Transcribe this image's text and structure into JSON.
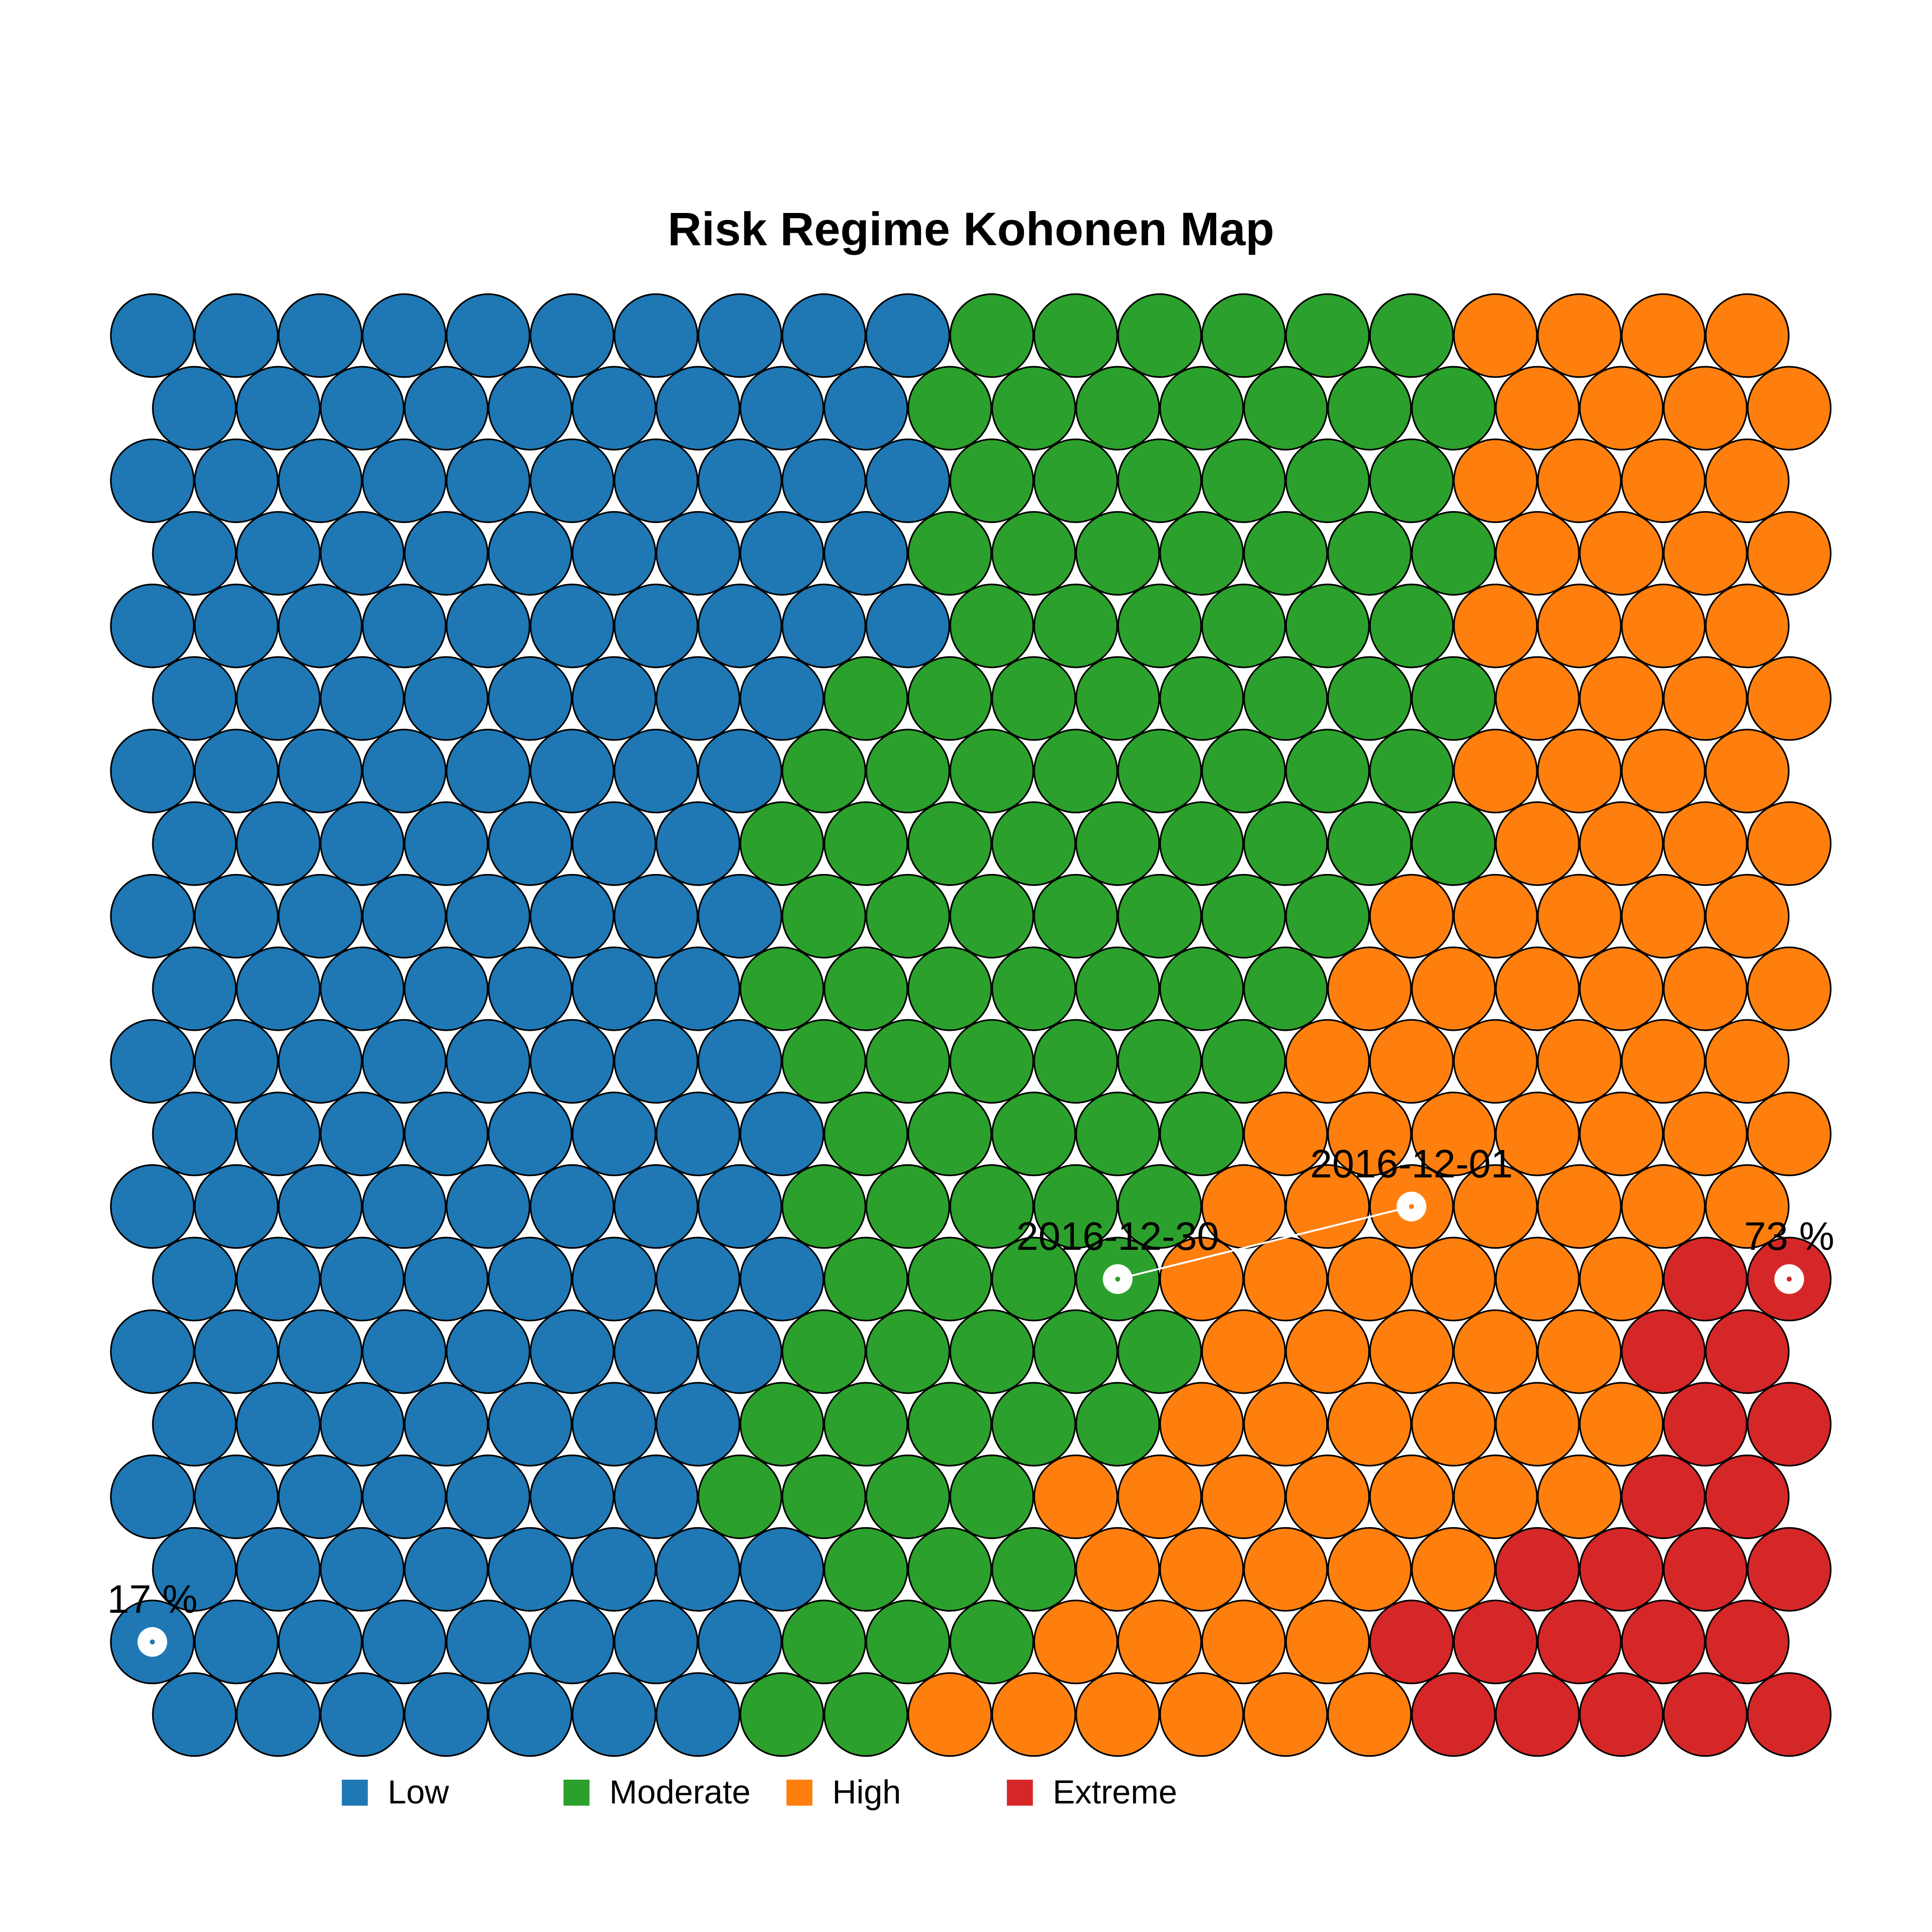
{
  "chart_data": {
    "type": "kohonen",
    "title": "Risk Regime Kohonen Map",
    "series": [
      {
        "name": "Low",
        "color": "#1f77b4"
      },
      {
        "name": "Moderate",
        "color": "#2ca02c"
      },
      {
        "name": "High",
        "color": "#ff7f0e"
      },
      {
        "name": "Extreme",
        "color": "#d62728"
      }
    ],
    "grid": [
      [
        0,
        0,
        0,
        0,
        0,
        0,
        0,
        0,
        0,
        0,
        1,
        1,
        1,
        1,
        1,
        1,
        2,
        2,
        2,
        2
      ],
      [
        0,
        0,
        0,
        0,
        0,
        0,
        0,
        0,
        0,
        1,
        1,
        1,
        1,
        1,
        1,
        1,
        2,
        2,
        2,
        2
      ],
      [
        0,
        0,
        0,
        0,
        0,
        0,
        0,
        0,
        0,
        0,
        1,
        1,
        1,
        1,
        1,
        1,
        2,
        2,
        2,
        2
      ],
      [
        0,
        0,
        0,
        0,
        0,
        0,
        0,
        0,
        0,
        1,
        1,
        1,
        1,
        1,
        1,
        1,
        2,
        2,
        2,
        2
      ],
      [
        0,
        0,
        0,
        0,
        0,
        0,
        0,
        0,
        0,
        0,
        1,
        1,
        1,
        1,
        1,
        1,
        2,
        2,
        2,
        2
      ],
      [
        0,
        0,
        0,
        0,
        0,
        0,
        0,
        0,
        1,
        1,
        1,
        1,
        1,
        1,
        1,
        1,
        2,
        2,
        2,
        2
      ],
      [
        0,
        0,
        0,
        0,
        0,
        0,
        0,
        0,
        1,
        1,
        1,
        1,
        1,
        1,
        1,
        1,
        2,
        2,
        2,
        2
      ],
      [
        0,
        0,
        0,
        0,
        0,
        0,
        0,
        1,
        1,
        1,
        1,
        1,
        1,
        1,
        1,
        1,
        2,
        2,
        2,
        2
      ],
      [
        0,
        0,
        0,
        0,
        0,
        0,
        0,
        0,
        1,
        1,
        1,
        1,
        1,
        1,
        1,
        2,
        2,
        2,
        2,
        2
      ],
      [
        0,
        0,
        0,
        0,
        0,
        0,
        0,
        1,
        1,
        1,
        1,
        1,
        1,
        1,
        2,
        2,
        2,
        2,
        2,
        2
      ],
      [
        0,
        0,
        0,
        0,
        0,
        0,
        0,
        0,
        1,
        1,
        1,
        1,
        1,
        1,
        2,
        2,
        2,
        2,
        2,
        2
      ],
      [
        0,
        0,
        0,
        0,
        0,
        0,
        0,
        0,
        1,
        1,
        1,
        1,
        1,
        2,
        2,
        2,
        2,
        2,
        2,
        2
      ],
      [
        0,
        0,
        0,
        0,
        0,
        0,
        0,
        0,
        1,
        1,
        1,
        1,
        1,
        2,
        2,
        2,
        2,
        2,
        2,
        2
      ],
      [
        0,
        0,
        0,
        0,
        0,
        0,
        0,
        0,
        1,
        1,
        1,
        1,
        2,
        2,
        2,
        2,
        2,
        2,
        3,
        3
      ],
      [
        0,
        0,
        0,
        0,
        0,
        0,
        0,
        0,
        1,
        1,
        1,
        1,
        1,
        2,
        2,
        2,
        2,
        2,
        3,
        3
      ],
      [
        0,
        0,
        0,
        0,
        0,
        0,
        0,
        1,
        1,
        1,
        1,
        1,
        2,
        2,
        2,
        2,
        2,
        2,
        3,
        3
      ],
      [
        0,
        0,
        0,
        0,
        0,
        0,
        0,
        1,
        1,
        1,
        1,
        2,
        2,
        2,
        2,
        2,
        2,
        2,
        3,
        3
      ],
      [
        0,
        0,
        0,
        0,
        0,
        0,
        0,
        0,
        1,
        1,
        1,
        2,
        2,
        2,
        2,
        2,
        3,
        3,
        3,
        3
      ],
      [
        0,
        0,
        0,
        0,
        0,
        0,
        0,
        0,
        1,
        1,
        1,
        2,
        2,
        2,
        2,
        3,
        3,
        3,
        3,
        3
      ],
      [
        0,
        0,
        0,
        0,
        0,
        0,
        0,
        1,
        1,
        2,
        2,
        2,
        2,
        2,
        2,
        3,
        3,
        3,
        3,
        3
      ]
    ],
    "annotations": [
      {
        "label": "17 %",
        "row": 18,
        "col": 0
      },
      {
        "label": "73 %",
        "row": 13,
        "col": 19
      }
    ],
    "path": [
      {
        "label": "2016-12-01",
        "row": 12,
        "col": 15
      },
      {
        "label": "2016-12-30",
        "row": 13,
        "col": 11
      }
    ]
  }
}
